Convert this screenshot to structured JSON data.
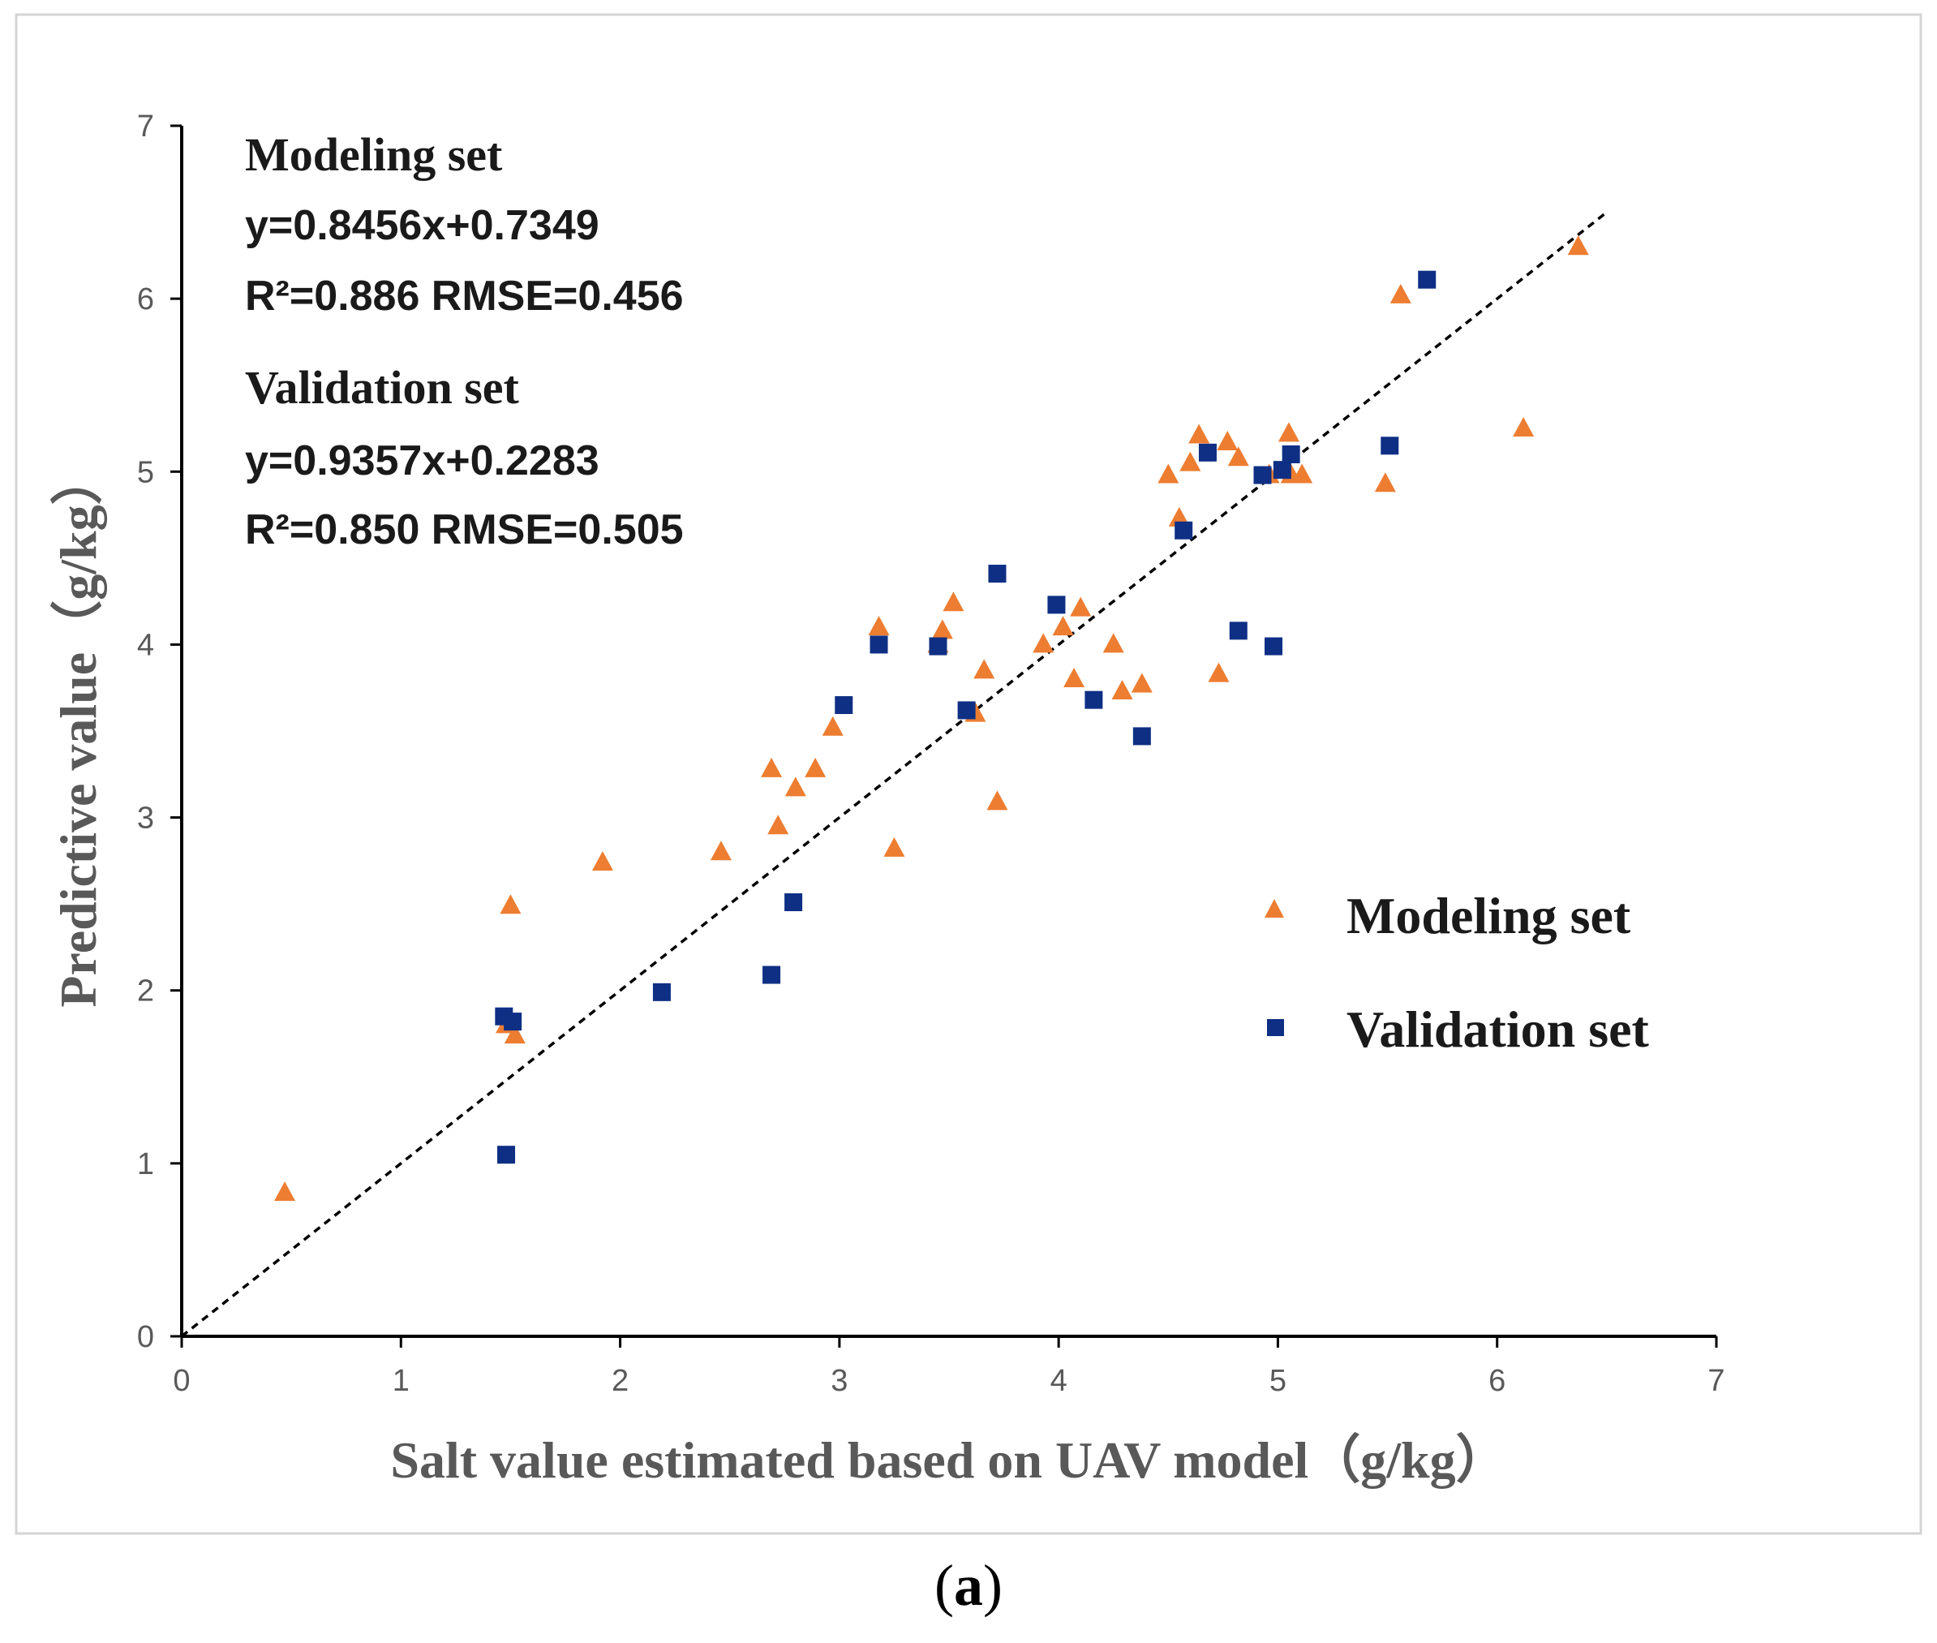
{
  "chart_data": {
    "type": "scatter",
    "panel_label": "a",
    "xlabel": "Salt value estimated based on UAV model（g/kg）",
    "ylabel": "Predictive value（g/kg）",
    "xlim": [
      0,
      7
    ],
    "ylim": [
      0,
      7
    ],
    "x_ticks": [
      "0",
      "1",
      "2",
      "3",
      "4",
      "5",
      "6",
      "7"
    ],
    "y_ticks": [
      "0",
      "1",
      "2",
      "3",
      "4",
      "5",
      "6",
      "7"
    ],
    "colors": {
      "modeling": "#ED7D31",
      "validation": "#0E2F84",
      "fit_line": "#000000"
    },
    "fit_line": {
      "style": "dashed",
      "from": [
        0,
        0
      ],
      "to": [
        6.5,
        6.5
      ]
    },
    "annotations": {
      "modeling_title": "Modeling set",
      "modeling_equation": "y=0.8456x+0.7349",
      "modeling_metrics": "R²=0.886 RMSE=0.456",
      "validation_title": "Validation set",
      "validation_equation": "y=0.9357x+0.2283",
      "validation_metrics": "R²=0.850 RMSE=0.505"
    },
    "legend": {
      "position": "center-right",
      "entries": [
        "Modeling set",
        "Validation set"
      ]
    },
    "series": [
      {
        "name": "Modeling set",
        "marker": "triangle",
        "points": [
          [
            0.47,
            0.83
          ],
          [
            1.48,
            1.8
          ],
          [
            1.52,
            1.74
          ],
          [
            1.5,
            2.49
          ],
          [
            1.92,
            2.74
          ],
          [
            2.46,
            2.8
          ],
          [
            2.69,
            3.28
          ],
          [
            2.72,
            2.95
          ],
          [
            2.8,
            3.17
          ],
          [
            2.89,
            3.28
          ],
          [
            2.97,
            3.52
          ],
          [
            3.18,
            4.1
          ],
          [
            3.25,
            2.82
          ],
          [
            3.45,
            4.0
          ],
          [
            3.47,
            4.08
          ],
          [
            3.52,
            4.24
          ],
          [
            3.62,
            3.6
          ],
          [
            3.66,
            3.85
          ],
          [
            3.72,
            3.09
          ],
          [
            3.93,
            4.0
          ],
          [
            4.02,
            4.1
          ],
          [
            4.07,
            3.8
          ],
          [
            4.1,
            4.21
          ],
          [
            4.25,
            4.0
          ],
          [
            4.29,
            3.73
          ],
          [
            4.38,
            3.77
          ],
          [
            4.5,
            4.98
          ],
          [
            4.55,
            4.73
          ],
          [
            4.6,
            5.05
          ],
          [
            4.64,
            5.21
          ],
          [
            4.73,
            3.83
          ],
          [
            4.77,
            5.17
          ],
          [
            4.82,
            5.08
          ],
          [
            4.96,
            4.98
          ],
          [
            5.05,
            5.22
          ],
          [
            5.06,
            4.98
          ],
          [
            5.11,
            4.98
          ],
          [
            5.49,
            4.93
          ],
          [
            5.56,
            6.02
          ],
          [
            6.12,
            5.25
          ],
          [
            6.37,
            6.3
          ]
        ]
      },
      {
        "name": "Validation set",
        "marker": "square",
        "points": [
          [
            1.47,
            1.85
          ],
          [
            1.51,
            1.82
          ],
          [
            1.48,
            1.05
          ],
          [
            2.19,
            1.99
          ],
          [
            2.69,
            2.09
          ],
          [
            2.79,
            2.51
          ],
          [
            3.02,
            3.65
          ],
          [
            3.18,
            4.0
          ],
          [
            3.45,
            3.99
          ],
          [
            3.58,
            3.62
          ],
          [
            3.72,
            4.41
          ],
          [
            3.99,
            4.23
          ],
          [
            4.16,
            3.68
          ],
          [
            4.38,
            3.47
          ],
          [
            4.57,
            4.66
          ],
          [
            4.68,
            5.11
          ],
          [
            4.82,
            4.08
          ],
          [
            4.93,
            4.98
          ],
          [
            4.98,
            3.99
          ],
          [
            5.02,
            5.01
          ],
          [
            5.06,
            5.1
          ],
          [
            5.51,
            5.15
          ],
          [
            5.68,
            6.11
          ]
        ]
      }
    ]
  }
}
